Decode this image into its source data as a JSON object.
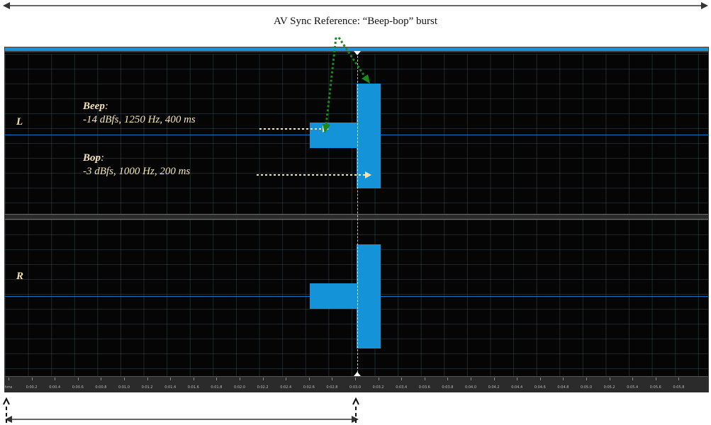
{
  "caption": "AV Sync Reference: “Beep-bop” burst",
  "channels": {
    "left_label": "L",
    "right_label": "R"
  },
  "beep": {
    "title": "Beep",
    "colon": ":",
    "desc": "-14 dBfs, 1250 Hz, 400 ms"
  },
  "bop": {
    "title": "Bop",
    "colon": ":",
    "desc": "-3 dBfs, 1000 Hz, 200 ms"
  },
  "ruler": {
    "labels": [
      "hms",
      "0:00.2",
      "0:00.4",
      "0:00.6",
      "0:00.8",
      "0:01.0",
      "0:01.2",
      "0:01.4",
      "0:01.6",
      "0:01.8",
      "0:02.0",
      "0:02.2",
      "0:02.4",
      "0:02.6",
      "0:02.8",
      "0:03.0",
      "0:03.2",
      "0:03.4",
      "0:03.6",
      "0:03.8",
      "0:04.0",
      "0:04.2",
      "0:04.4",
      "0:04.6",
      "0:04.8",
      "0:05.0",
      "0:05.2",
      "0:05.4",
      "0:05.6",
      "0:05.8"
    ]
  },
  "colors": {
    "waveform": "#1593d9",
    "annotation_text": "#f3e3b5",
    "green_arrow": "#1a8a1a"
  }
}
